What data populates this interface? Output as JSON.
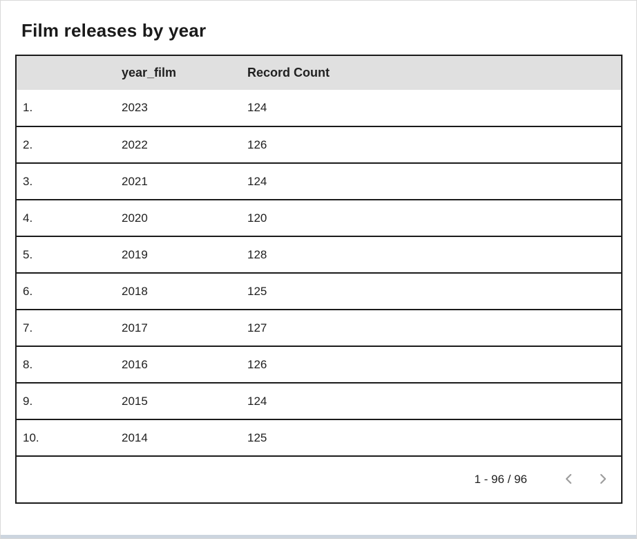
{
  "card": {
    "title": "Film releases by year"
  },
  "table": {
    "columns": [
      "",
      "year_film",
      "Record Count"
    ],
    "rows": [
      {
        "index": "1.",
        "year_film": "2023",
        "record_count": "124"
      },
      {
        "index": "2.",
        "year_film": "2022",
        "record_count": "126"
      },
      {
        "index": "3.",
        "year_film": "2021",
        "record_count": "124"
      },
      {
        "index": "4.",
        "year_film": "2020",
        "record_count": "120"
      },
      {
        "index": "5.",
        "year_film": "2019",
        "record_count": "128"
      },
      {
        "index": "6.",
        "year_film": "2018",
        "record_count": "125"
      },
      {
        "index": "7.",
        "year_film": "2017",
        "record_count": "127"
      },
      {
        "index": "8.",
        "year_film": "2016",
        "record_count": "126"
      },
      {
        "index": "9.",
        "year_film": "2015",
        "record_count": "124"
      },
      {
        "index": "10.",
        "year_film": "2014",
        "record_count": "125"
      }
    ]
  },
  "pagination": {
    "range_label": "1 - 96 / 96",
    "prev_icon": "chevron-left",
    "next_icon": "chevron-right"
  },
  "colors": {
    "header_bg": "#e0e0e0",
    "table_border": "#1a1a1a",
    "text": "#212121",
    "chevron": "#9e9e9e",
    "card_border": "#d9d9d9",
    "bottom_strip": "#ccd5df"
  },
  "chart_data": {
    "type": "table",
    "title": "Film releases by year",
    "columns": [
      "year_film",
      "Record Count"
    ],
    "rows": [
      [
        2023,
        124
      ],
      [
        2022,
        126
      ],
      [
        2021,
        124
      ],
      [
        2020,
        120
      ],
      [
        2019,
        128
      ],
      [
        2018,
        125
      ],
      [
        2017,
        127
      ],
      [
        2016,
        126
      ],
      [
        2015,
        124
      ],
      [
        2014,
        125
      ]
    ],
    "pagination_label": "1 - 96 / 96",
    "total_records": 96,
    "visible_range": [
      1,
      96
    ]
  }
}
